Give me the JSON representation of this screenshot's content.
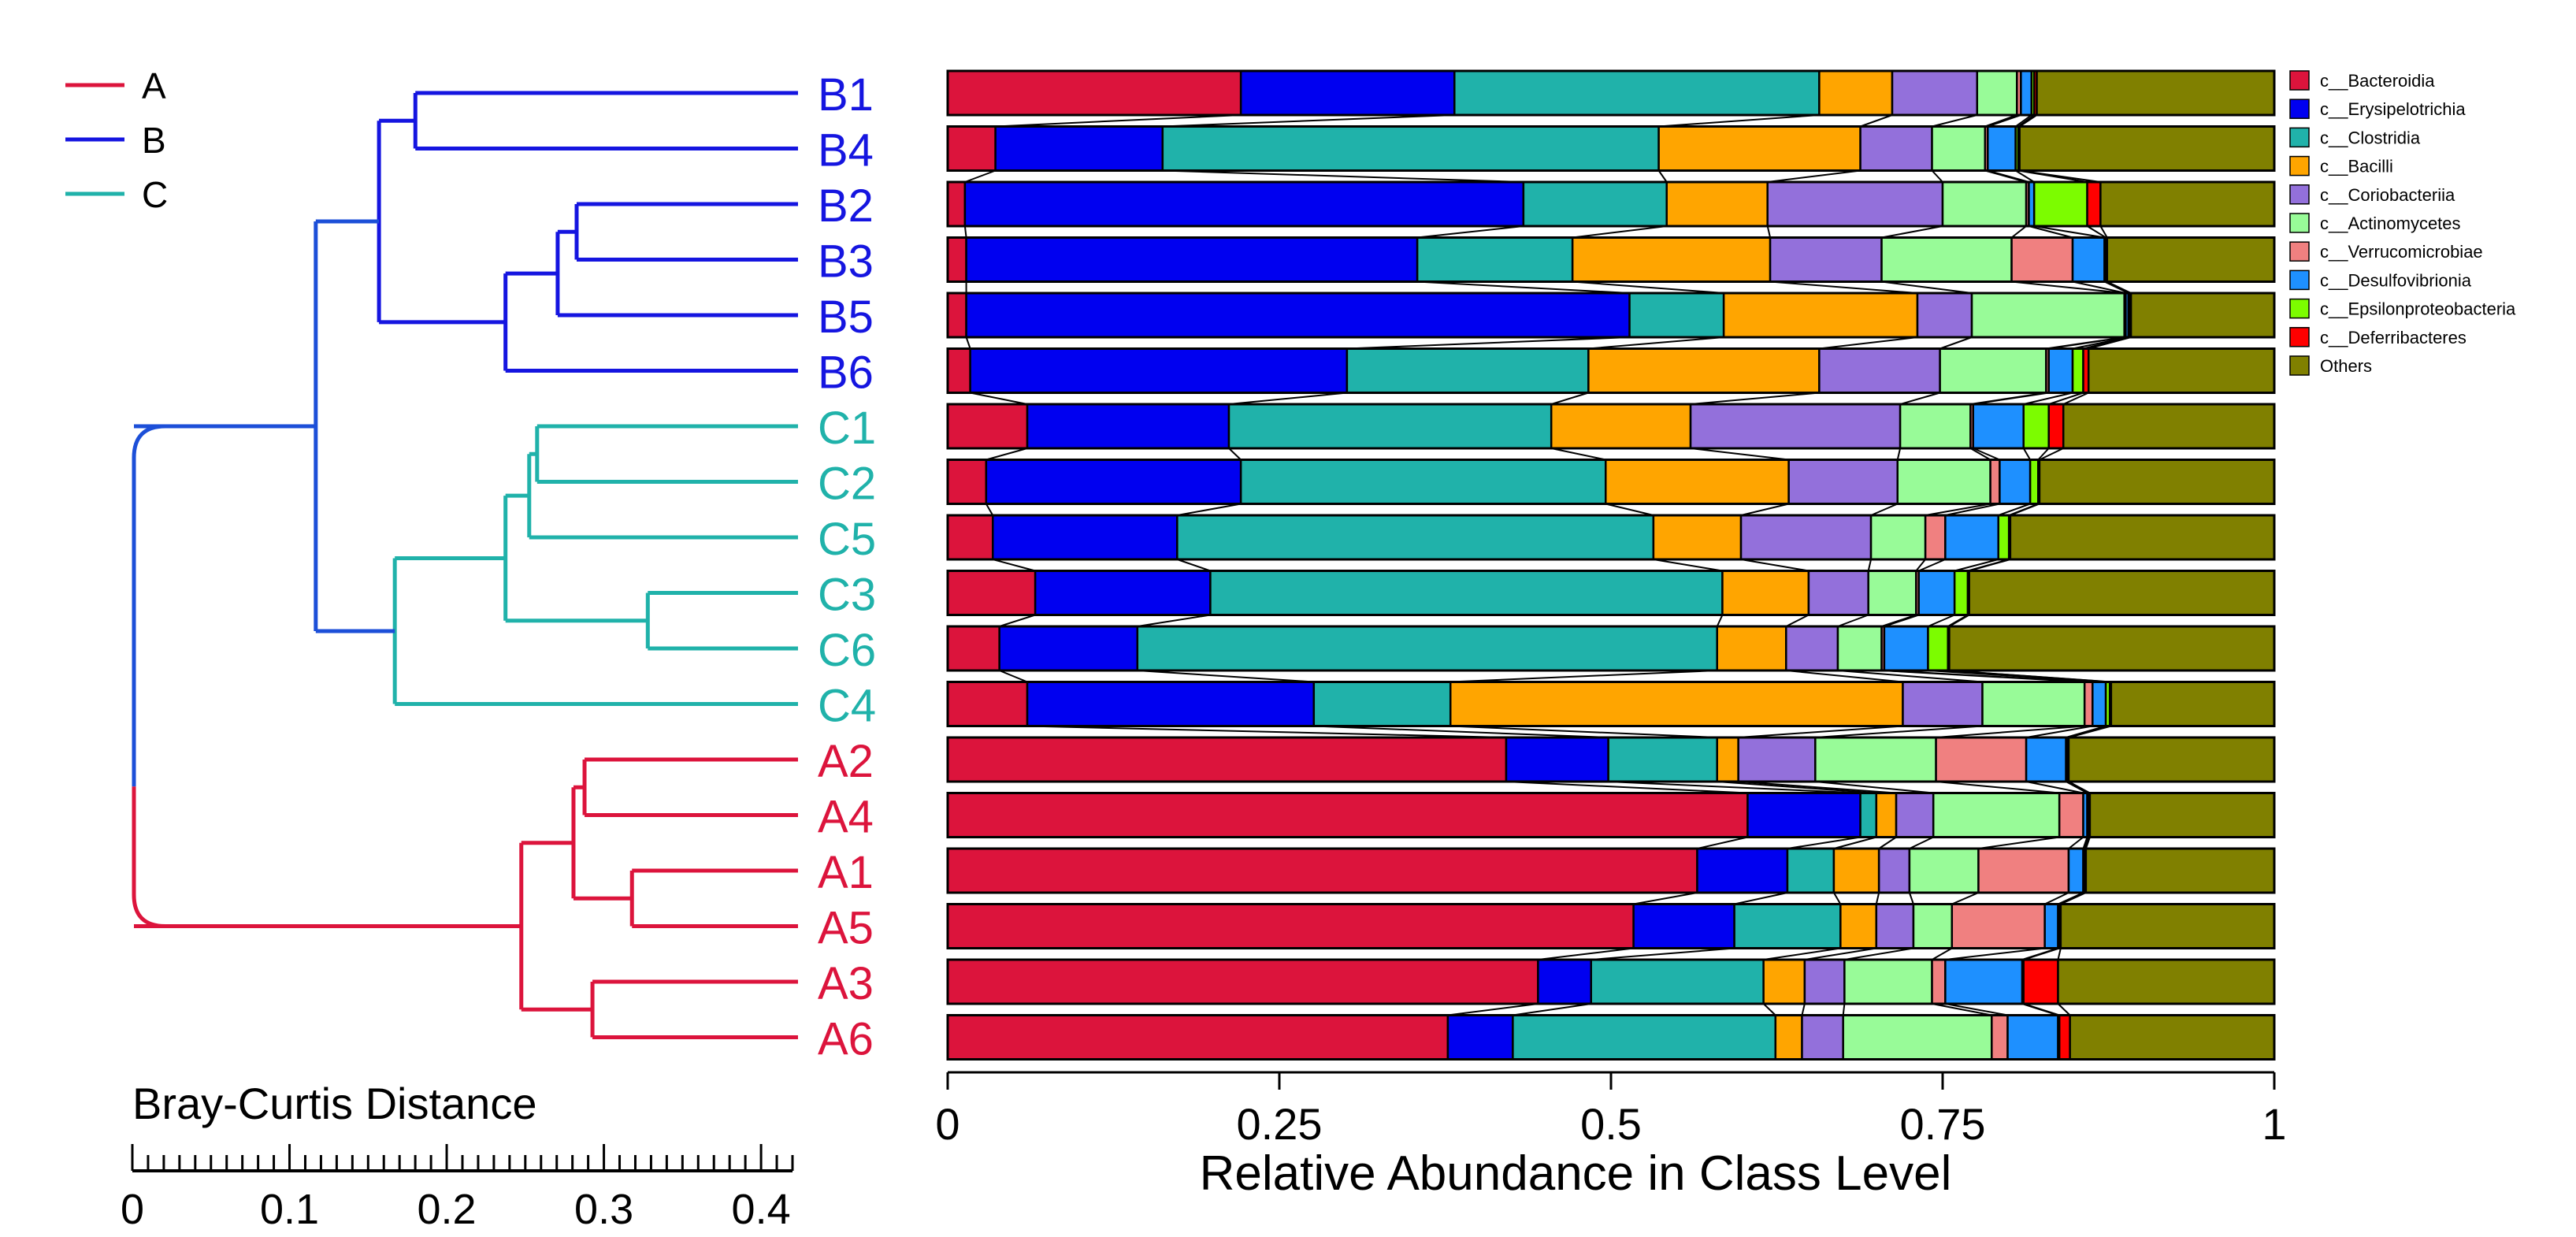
{
  "chart_data": [
    {
      "type": "dendrogram",
      "xlabel": "Bray-Curtis Distance",
      "axis_ticks": [
        "0",
        "0.1",
        "0.2",
        "0.3",
        "0.4"
      ],
      "xlim": [
        0,
        0.42
      ],
      "legend": {
        "position": "top-left",
        "entries": [
          {
            "label": "A",
            "color": "#DC143C"
          },
          {
            "label": "B",
            "color": "#1515E0"
          },
          {
            "label": "C",
            "color": "#20B2AA"
          }
        ]
      },
      "leaves": [
        {
          "label": "B1",
          "group": "B"
        },
        {
          "label": "B4",
          "group": "B"
        },
        {
          "label": "B2",
          "group": "B"
        },
        {
          "label": "B3",
          "group": "B"
        },
        {
          "label": "B5",
          "group": "B"
        },
        {
          "label": "B6",
          "group": "B"
        },
        {
          "label": "C1",
          "group": "C"
        },
        {
          "label": "C2",
          "group": "C"
        },
        {
          "label": "C5",
          "group": "C"
        },
        {
          "label": "C3",
          "group": "C"
        },
        {
          "label": "C6",
          "group": "C"
        },
        {
          "label": "C4",
          "group": "C"
        },
        {
          "label": "A2",
          "group": "A"
        },
        {
          "label": "A4",
          "group": "A"
        },
        {
          "label": "A1",
          "group": "A"
        },
        {
          "label": "A5",
          "group": "A"
        },
        {
          "label": "A3",
          "group": "A"
        },
        {
          "label": "A6",
          "group": "A"
        }
      ],
      "merges": [
        {
          "id": "b23",
          "children": [
            "B2",
            "B3"
          ],
          "height": 0.14,
          "group": "B"
        },
        {
          "id": "b235",
          "children": [
            "b23",
            "B5"
          ],
          "height": 0.152,
          "group": "B"
        },
        {
          "id": "b2356",
          "children": [
            "b235",
            "B6"
          ],
          "height": 0.185,
          "group": "B"
        },
        {
          "id": "b14",
          "children": [
            "B1",
            "B4"
          ],
          "height": 0.242,
          "group": "B"
        },
        {
          "id": "bAll",
          "children": [
            "b14",
            "b2356"
          ],
          "height": 0.265,
          "group": "B"
        },
        {
          "id": "c12",
          "children": [
            "C1",
            "C2"
          ],
          "height": 0.165,
          "group": "C"
        },
        {
          "id": "c125",
          "children": [
            "c12",
            "C5"
          ],
          "height": 0.17,
          "group": "C"
        },
        {
          "id": "c36",
          "children": [
            "C3",
            "C6"
          ],
          "height": 0.095,
          "group": "C"
        },
        {
          "id": "c12536",
          "children": [
            "c125",
            "c36"
          ],
          "height": 0.185,
          "group": "C"
        },
        {
          "id": "cAll",
          "children": [
            "c12536",
            "C4"
          ],
          "height": 0.255,
          "group": "C"
        },
        {
          "id": "bc",
          "children": [
            "bAll",
            "cAll"
          ],
          "height": 0.305,
          "group": "BC"
        },
        {
          "id": "a24",
          "children": [
            "A2",
            "A4"
          ],
          "height": 0.135,
          "group": "A"
        },
        {
          "id": "a15",
          "children": [
            "A1",
            "A5"
          ],
          "height": 0.105,
          "group": "A"
        },
        {
          "id": "a2415",
          "children": [
            "a24",
            "a15"
          ],
          "height": 0.142,
          "group": "A"
        },
        {
          "id": "a36",
          "children": [
            "A3",
            "A6"
          ],
          "height": 0.13,
          "group": "A"
        },
        {
          "id": "aAll",
          "children": [
            "a2415",
            "a36"
          ],
          "height": 0.175,
          "group": "A"
        },
        {
          "id": "root",
          "children": [
            "bc",
            "aAll"
          ],
          "height": 0.42,
          "group": "root"
        }
      ]
    },
    {
      "type": "stacked-bar",
      "orientation": "horizontal",
      "xlabel": "Relative Abundance in Class Level",
      "ylabel": "",
      "xlim": [
        0,
        1
      ],
      "x_ticks": [
        {
          "value": 0,
          "label": "0"
        },
        {
          "value": 0.25,
          "label": "0.25"
        },
        {
          "value": 0.5,
          "label": "0.5"
        },
        {
          "value": 0.75,
          "label": "0.75"
        },
        {
          "value": 1,
          "label": "1"
        }
      ],
      "legend_position": "right",
      "connect_bars": true,
      "categories": [
        "B1",
        "B4",
        "B2",
        "B3",
        "B5",
        "B6",
        "C1",
        "C2",
        "C5",
        "C3",
        "C6",
        "C4",
        "A2",
        "A4",
        "A1",
        "A5",
        "A3",
        "A6"
      ],
      "series": [
        {
          "name": "c__Bacteroidia",
          "color": "#DC143C",
          "values": [
            0.221,
            0.036,
            0.013,
            0.014,
            0.014,
            0.017,
            0.06,
            0.029,
            0.034,
            0.066,
            0.039,
            0.06,
            0.421,
            0.603,
            0.565,
            0.517,
            0.445,
            0.377
          ]
        },
        {
          "name": "c__Erysipelotrichia",
          "color": "#0000F0",
          "values": [
            0.161,
            0.126,
            0.421,
            0.34,
            0.5,
            0.284,
            0.152,
            0.192,
            0.139,
            0.132,
            0.104,
            0.216,
            0.077,
            0.085,
            0.068,
            0.076,
            0.04,
            0.049
          ]
        },
        {
          "name": "c__Clostridia",
          "color": "#20B2AA",
          "values": [
            0.275,
            0.374,
            0.108,
            0.117,
            0.071,
            0.182,
            0.243,
            0.275,
            0.359,
            0.386,
            0.437,
            0.103,
            0.082,
            0.012,
            0.035,
            0.08,
            0.13,
            0.198
          ]
        },
        {
          "name": "c__Bacilli",
          "color": "#FFA500",
          "values": [
            0.055,
            0.152,
            0.076,
            0.149,
            0.146,
            0.174,
            0.105,
            0.138,
            0.066,
            0.065,
            0.052,
            0.341,
            0.016,
            0.015,
            0.034,
            0.027,
            0.031,
            0.02
          ]
        },
        {
          "name": "c__Coriobacteriia",
          "color": "#9370DB",
          "values": [
            0.064,
            0.054,
            0.132,
            0.084,
            0.041,
            0.091,
            0.158,
            0.082,
            0.098,
            0.045,
            0.039,
            0.06,
            0.058,
            0.028,
            0.023,
            0.028,
            0.03,
            0.031
          ]
        },
        {
          "name": "c__Actinomycetes",
          "color": "#98FB98",
          "values": [
            0.03,
            0.04,
            0.063,
            0.098,
            0.115,
            0.08,
            0.053,
            0.07,
            0.041,
            0.036,
            0.033,
            0.077,
            0.091,
            0.095,
            0.052,
            0.029,
            0.066,
            0.112
          ]
        },
        {
          "name": "c__Verrucomicrobiae",
          "color": "#F08080",
          "values": [
            0.003,
            0.002,
            0.002,
            0.046,
            0.001,
            0.002,
            0.002,
            0.007,
            0.015,
            0.002,
            0.002,
            0.006,
            0.068,
            0.018,
            0.068,
            0.07,
            0.01,
            0.012
          ]
        },
        {
          "name": "c__Desulfovibrionia",
          "color": "#1E90FF",
          "values": [
            0.008,
            0.021,
            0.004,
            0.024,
            0.002,
            0.018,
            0.038,
            0.023,
            0.04,
            0.027,
            0.033,
            0.01,
            0.03,
            0.003,
            0.011,
            0.01,
            0.058,
            0.038
          ]
        },
        {
          "name": "c__Epsilonproteobacteria",
          "color": "#7CFC00",
          "values": [
            0.002,
            0.002,
            0.04,
            0.001,
            0.001,
            0.008,
            0.019,
            0.006,
            0.008,
            0.01,
            0.015,
            0.003,
            0.001,
            0.001,
            0.001,
            0.001,
            0.001,
            0.001
          ]
        },
        {
          "name": "c__Deferribacteres",
          "color": "#FF0000",
          "values": [
            0.002,
            0.001,
            0.01,
            0.001,
            0.001,
            0.004,
            0.011,
            0.001,
            0.001,
            0.001,
            0.001,
            0.001,
            0.001,
            0.001,
            0.001,
            0.001,
            0.026,
            0.008
          ]
        },
        {
          "name": "Others",
          "color": "#808000",
          "values": [
            0.179,
            0.192,
            0.131,
            0.126,
            0.108,
            0.14,
            0.159,
            0.177,
            0.199,
            0.23,
            0.245,
            0.123,
            0.155,
            0.139,
            0.142,
            0.161,
            0.163,
            0.154
          ]
        }
      ]
    }
  ]
}
